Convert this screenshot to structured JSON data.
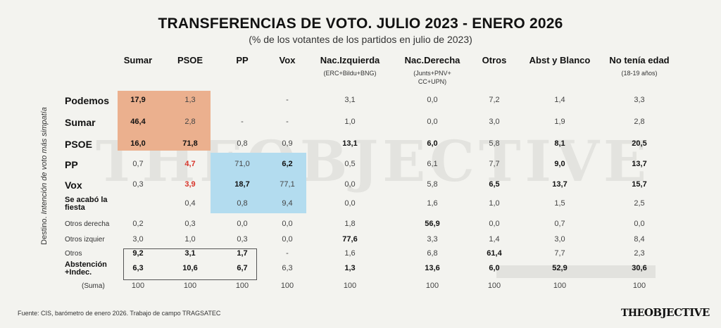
{
  "header": {
    "title": "TRANSFERENCIAS DE  VOTO. JULIO 2023 - ENERO 2026",
    "subtitle": "(% de los votantes de los partidos en julio de 2023)"
  },
  "watermark": "THEOBJECTIVE",
  "axis_label_prefix": "Destino. ",
  "axis_label_italic": "Intención de voto más simpatía",
  "colors": {
    "orange_block": "#ebb08e",
    "blue_block": "#b3dcef",
    "grey_band": "#e2e2de",
    "highlight_red": "#d8342a",
    "box_border": "#555555"
  },
  "chart_data": {
    "type": "table",
    "title": "TRANSFERENCIAS DE  VOTO. JULIO 2023 - ENERO 2026",
    "subtitle": "(% de los votantes de los partidos en julio de 2023)",
    "row_axis_label": "Destino. Intención de voto más simpatía",
    "columns": [
      {
        "label": "Sumar",
        "sub": ""
      },
      {
        "label": "PSOE",
        "sub": ""
      },
      {
        "label": "PP",
        "sub": ""
      },
      {
        "label": "Vox",
        "sub": ""
      },
      {
        "label": "Nac.Izquierda",
        "sub": "(ERC+Bildu+BNG)"
      },
      {
        "label": "Nac.Derecha",
        "sub": "(Junts+PNV+ CC+UPN)"
      },
      {
        "label": "Otros",
        "sub": ""
      },
      {
        "label": "Abst y Blanco",
        "sub": ""
      },
      {
        "label": "No tenía edad",
        "sub": "(18-19 años)"
      }
    ],
    "rows": [
      {
        "label": "Podemos",
        "style": "big",
        "values": [
          "17,9",
          "1,3",
          "",
          "-",
          "3,1",
          "0,0",
          "7,2",
          "1,4",
          "3,3"
        ],
        "bold": [
          true,
          false,
          false,
          false,
          false,
          false,
          false,
          false,
          false
        ]
      },
      {
        "label": "Sumar",
        "style": "big",
        "values": [
          "46,4",
          "2,8",
          "-",
          "-",
          "1,0",
          "0,0",
          "3,0",
          "1,9",
          "2,8"
        ],
        "bold": [
          true,
          false,
          false,
          false,
          false,
          false,
          false,
          false,
          false
        ]
      },
      {
        "label": "PSOE",
        "style": "big",
        "values": [
          "16,0",
          "71,8",
          "0,8",
          "0,9",
          "13,1",
          "6,0",
          "5,8",
          "8,1",
          "20,5"
        ],
        "bold": [
          true,
          true,
          false,
          false,
          true,
          true,
          false,
          true,
          true
        ]
      },
      {
        "label": "PP",
        "style": "big",
        "values": [
          "0,7",
          "4,7",
          "71,0",
          "6,2",
          "0,5",
          "6,1",
          "7,7",
          "9,0",
          "13,7"
        ],
        "bold": [
          false,
          "red",
          false,
          true,
          false,
          false,
          false,
          true,
          true
        ]
      },
      {
        "label": "Vox",
        "style": "big",
        "values": [
          "0,3",
          "3,9",
          "18,7",
          "77,1",
          "0,0",
          "5,8",
          "6,5",
          "13,7",
          "15,7"
        ],
        "bold": [
          false,
          "red",
          true,
          false,
          false,
          false,
          true,
          true,
          true
        ]
      },
      {
        "label": "Se acabó la fiesta",
        "style": "mid",
        "values": [
          "",
          "0,4",
          "0,8",
          "9,4",
          "0,0",
          "1,6",
          "1,0",
          "1,5",
          "2,5"
        ],
        "bold": [
          false,
          false,
          false,
          false,
          false,
          false,
          false,
          false,
          false
        ]
      },
      {
        "label": "Otros derecha",
        "style": "small",
        "values": [
          "0,2",
          "0,3",
          "0,0",
          "0,0",
          "1,8",
          "56,9",
          "0,0",
          "0,7",
          "0,0"
        ],
        "bold": [
          false,
          false,
          false,
          false,
          false,
          true,
          false,
          false,
          false
        ]
      },
      {
        "label": "Otros izquier",
        "style": "small",
        "values": [
          "3,0",
          "1,0",
          "0,3",
          "0,0",
          "77,6",
          "3,3",
          "1,4",
          "3,0",
          "8,4"
        ],
        "bold": [
          false,
          false,
          false,
          false,
          true,
          false,
          false,
          false,
          false
        ]
      },
      {
        "label": "Otros",
        "style": "small",
        "values": [
          "9,2",
          "3,1",
          "1,7",
          "-",
          "1,6",
          "6,8",
          "61,4",
          "7,7",
          "2,3"
        ],
        "bold": [
          true,
          true,
          true,
          false,
          false,
          false,
          true,
          false,
          false
        ]
      },
      {
        "label": "Abstención +Indec.",
        "style": "mid",
        "values": [
          "6,3",
          "10,6",
          "6,7",
          "6,3",
          "1,3",
          "13,6",
          "6,0",
          "52,9",
          "30,6"
        ],
        "bold": [
          true,
          true,
          true,
          false,
          true,
          true,
          true,
          true,
          true
        ]
      },
      {
        "label": "(Suma)",
        "style": "small",
        "values": [
          "100",
          "100",
          "100",
          "100",
          "100",
          "100",
          "100",
          "100",
          "100"
        ],
        "bold": [
          false,
          false,
          false,
          false,
          false,
          false,
          false,
          false,
          false
        ]
      }
    ]
  },
  "footer": {
    "source": "Fuente: CIS, barómetro de enero 2026. Trabajo de campo TRAGSATEC",
    "logo_left": "THE",
    "logo_right": "OBJECTIVE"
  }
}
